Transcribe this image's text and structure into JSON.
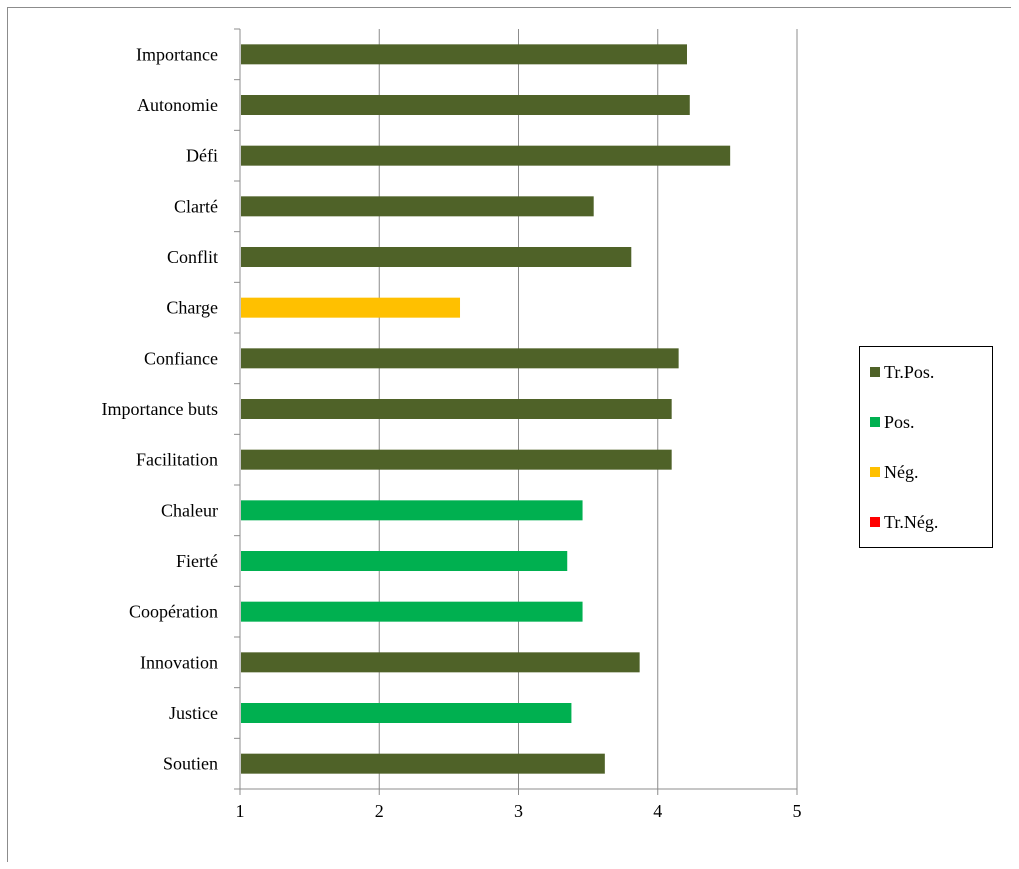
{
  "chart_data": {
    "type": "bar",
    "orientation": "horizontal",
    "categories": [
      "Importance",
      "Autonomie",
      "Défi",
      "Clarté",
      "Conflit",
      "Charge",
      "Confiance",
      "Importance buts",
      "Facilitation",
      "Chaleur",
      "Fierté",
      "Coopération",
      "Innovation",
      "Justice",
      "Soutien"
    ],
    "values": [
      4.21,
      4.23,
      4.52,
      3.54,
      3.81,
      2.58,
      4.15,
      4.1,
      4.1,
      3.46,
      3.35,
      3.46,
      3.87,
      3.38,
      3.62
    ],
    "bar_classes": [
      "Tr.Pos.",
      "Tr.Pos.",
      "Tr.Pos.",
      "Tr.Pos.",
      "Tr.Pos.",
      "Nég.",
      "Tr.Pos.",
      "Tr.Pos.",
      "Tr.Pos.",
      "Pos.",
      "Pos.",
      "Pos.",
      "Tr.Pos.",
      "Pos.",
      "Tr.Pos."
    ],
    "xlim": [
      1,
      5
    ],
    "xticks": [
      "1",
      "2",
      "3",
      "4",
      "5"
    ],
    "grid": "vertical",
    "legend_position": "right",
    "legend": [
      {
        "label": "Tr.Pos.",
        "color": "#4f6228"
      },
      {
        "label": "Pos.",
        "color": "#00b050"
      },
      {
        "label": "Nég.",
        "color": "#ffc000"
      },
      {
        "label": "Tr.Nég.",
        "color": "#ff0000"
      }
    ],
    "title": "",
    "xlabel": "",
    "ylabel": ""
  }
}
